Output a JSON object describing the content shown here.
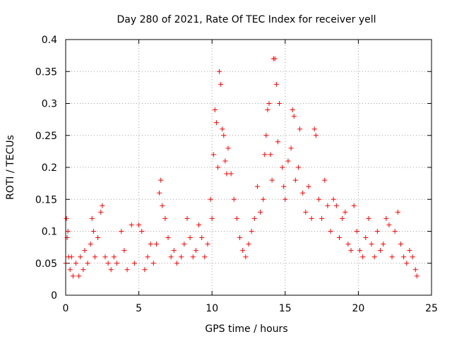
{
  "chart_data": {
    "type": "scatter",
    "title": "Day 280 of 2021, Rate Of TEC Index for receiver yell",
    "xlabel": "GPS time / hours",
    "ylabel": "ROTI / TECUs",
    "xlim": [
      0,
      25
    ],
    "ylim": [
      0,
      0.4
    ],
    "x_ticks": [
      0,
      5,
      10,
      15,
      20,
      25
    ],
    "x_tick_labels": [
      "0",
      "5",
      "10",
      "15",
      "20",
      "25"
    ],
    "y_ticks": [
      0,
      0.05,
      0.1,
      0.15,
      0.2,
      0.25,
      0.3,
      0.35,
      0.4
    ],
    "y_tick_labels": [
      "0",
      "0.05",
      "0.1",
      "0.15",
      "0.2",
      "0.25",
      "0.3",
      "0.35",
      "0.4"
    ],
    "grid": true,
    "marker": "plus",
    "color": "#ff0000",
    "series": [
      {
        "points": [
          [
            0.0,
            0.05
          ],
          [
            0.05,
            0.12
          ],
          [
            0.1,
            0.09
          ],
          [
            0.15,
            0.1
          ],
          [
            0.2,
            0.06
          ],
          [
            0.3,
            0.04
          ],
          [
            0.4,
            0.06
          ],
          [
            0.5,
            0.03
          ],
          [
            0.7,
            0.05
          ],
          [
            0.9,
            0.03
          ],
          [
            1.0,
            0.06
          ],
          [
            1.2,
            0.04
          ],
          [
            1.3,
            0.07
          ],
          [
            1.5,
            0.05
          ],
          [
            1.7,
            0.08
          ],
          [
            1.8,
            0.12
          ],
          [
            1.9,
            0.1
          ],
          [
            2.0,
            0.06
          ],
          [
            2.2,
            0.09
          ],
          [
            2.4,
            0.13
          ],
          [
            2.5,
            0.14
          ],
          [
            2.7,
            0.06
          ],
          [
            2.9,
            0.05
          ],
          [
            3.1,
            0.04
          ],
          [
            3.3,
            0.06
          ],
          [
            3.5,
            0.05
          ],
          [
            3.8,
            0.1
          ],
          [
            4.0,
            0.07
          ],
          [
            4.2,
            0.04
          ],
          [
            4.5,
            0.11
          ],
          [
            4.7,
            0.05
          ],
          [
            5.0,
            0.11
          ],
          [
            5.2,
            0.1
          ],
          [
            5.4,
            0.04
          ],
          [
            5.6,
            0.06
          ],
          [
            5.8,
            0.08
          ],
          [
            6.0,
            0.05
          ],
          [
            6.2,
            0.08
          ],
          [
            6.4,
            0.16
          ],
          [
            6.5,
            0.18
          ],
          [
            6.6,
            0.14
          ],
          [
            6.8,
            0.12
          ],
          [
            7.0,
            0.09
          ],
          [
            7.2,
            0.06
          ],
          [
            7.4,
            0.07
          ],
          [
            7.6,
            0.05
          ],
          [
            7.9,
            0.06
          ],
          [
            8.1,
            0.08
          ],
          [
            8.3,
            0.12
          ],
          [
            8.5,
            0.09
          ],
          [
            8.7,
            0.06
          ],
          [
            8.9,
            0.07
          ],
          [
            9.1,
            0.11
          ],
          [
            9.3,
            0.09
          ],
          [
            9.5,
            0.06
          ],
          [
            9.7,
            0.08
          ],
          [
            9.9,
            0.15
          ],
          [
            10.0,
            0.12
          ],
          [
            10.1,
            0.22
          ],
          [
            10.2,
            0.29
          ],
          [
            10.3,
            0.27
          ],
          [
            10.4,
            0.2
          ],
          [
            10.5,
            0.35
          ],
          [
            10.6,
            0.33
          ],
          [
            10.7,
            0.26
          ],
          [
            10.8,
            0.25
          ],
          [
            10.9,
            0.21
          ],
          [
            11.0,
            0.19
          ],
          [
            11.1,
            0.23
          ],
          [
            11.3,
            0.19
          ],
          [
            11.5,
            0.15
          ],
          [
            11.7,
            0.12
          ],
          [
            11.9,
            0.09
          ],
          [
            12.1,
            0.07
          ],
          [
            12.3,
            0.06
          ],
          [
            12.5,
            0.08
          ],
          [
            12.7,
            0.1
          ],
          [
            12.9,
            0.12
          ],
          [
            13.1,
            0.17
          ],
          [
            13.3,
            0.13
          ],
          [
            13.5,
            0.15
          ],
          [
            13.6,
            0.22
          ],
          [
            13.7,
            0.25
          ],
          [
            13.8,
            0.29
          ],
          [
            13.9,
            0.3
          ],
          [
            14.0,
            0.22
          ],
          [
            14.1,
            0.18
          ],
          [
            14.2,
            0.37
          ],
          [
            14.3,
            0.37
          ],
          [
            14.4,
            0.33
          ],
          [
            14.5,
            0.24
          ],
          [
            14.6,
            0.3
          ],
          [
            14.8,
            0.2
          ],
          [
            14.9,
            0.17
          ],
          [
            15.0,
            0.15
          ],
          [
            15.2,
            0.21
          ],
          [
            15.4,
            0.23
          ],
          [
            15.5,
            0.29
          ],
          [
            15.6,
            0.28
          ],
          [
            15.7,
            0.18
          ],
          [
            15.9,
            0.2
          ],
          [
            16.0,
            0.26
          ],
          [
            16.2,
            0.16
          ],
          [
            16.4,
            0.13
          ],
          [
            16.6,
            0.17
          ],
          [
            16.8,
            0.12
          ],
          [
            17.0,
            0.26
          ],
          [
            17.1,
            0.25
          ],
          [
            17.3,
            0.15
          ],
          [
            17.5,
            0.12
          ],
          [
            17.7,
            0.18
          ],
          [
            17.9,
            0.14
          ],
          [
            18.1,
            0.1
          ],
          [
            18.3,
            0.15
          ],
          [
            18.5,
            0.14
          ],
          [
            18.7,
            0.09
          ],
          [
            18.9,
            0.12
          ],
          [
            19.1,
            0.13
          ],
          [
            19.3,
            0.08
          ],
          [
            19.5,
            0.07
          ],
          [
            19.7,
            0.14
          ],
          [
            19.9,
            0.1
          ],
          [
            20.1,
            0.07
          ],
          [
            20.3,
            0.06
          ],
          [
            20.5,
            0.09
          ],
          [
            20.7,
            0.12
          ],
          [
            20.9,
            0.08
          ],
          [
            21.1,
            0.06
          ],
          [
            21.3,
            0.1
          ],
          [
            21.5,
            0.07
          ],
          [
            21.7,
            0.08
          ],
          [
            21.9,
            0.12
          ],
          [
            22.1,
            0.11
          ],
          [
            22.3,
            0.06
          ],
          [
            22.5,
            0.1
          ],
          [
            22.7,
            0.13
          ],
          [
            22.9,
            0.08
          ],
          [
            23.1,
            0.06
          ],
          [
            23.3,
            0.05
          ],
          [
            23.5,
            0.07
          ],
          [
            23.7,
            0.06
          ],
          [
            23.9,
            0.04
          ],
          [
            24.0,
            0.03
          ]
        ]
      }
    ]
  }
}
